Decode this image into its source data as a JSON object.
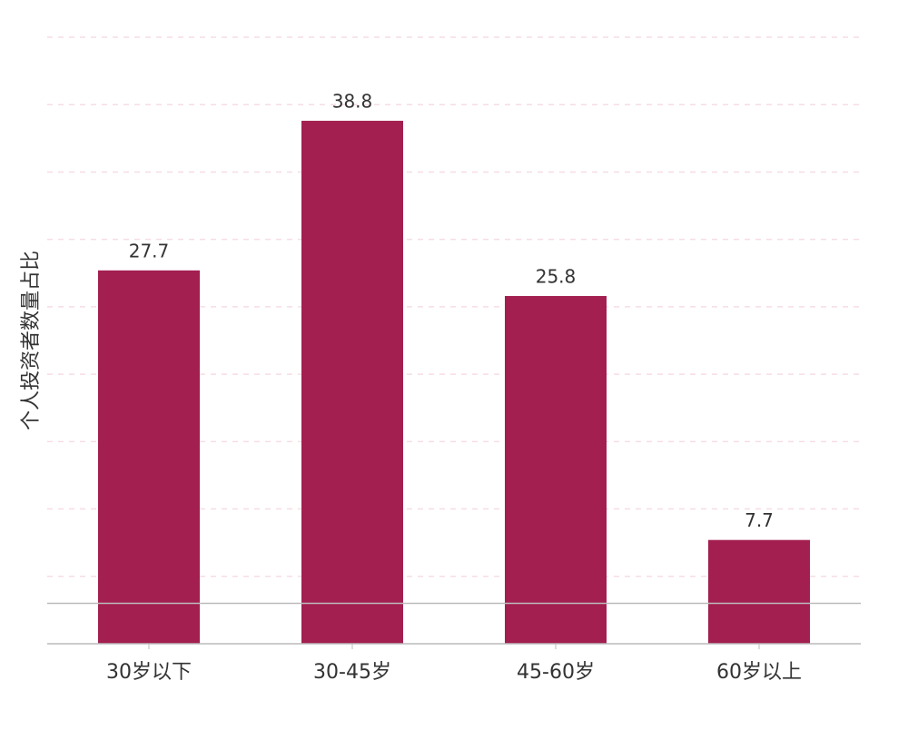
{
  "chart_data": {
    "type": "bar",
    "y_label": "个人投资者数量占比",
    "categories": [
      "30岁以下",
      "30-45岁",
      "45-60岁",
      "60岁以上"
    ],
    "values": [
      27.7,
      38.8,
      25.8,
      7.7
    ],
    "color": "#a31f50",
    "ylim": [
      0,
      45
    ],
    "yticks": [
      5,
      10,
      15,
      20,
      25,
      30,
      35,
      40,
      45
    ],
    "grid": true,
    "reference_line": 3
  }
}
